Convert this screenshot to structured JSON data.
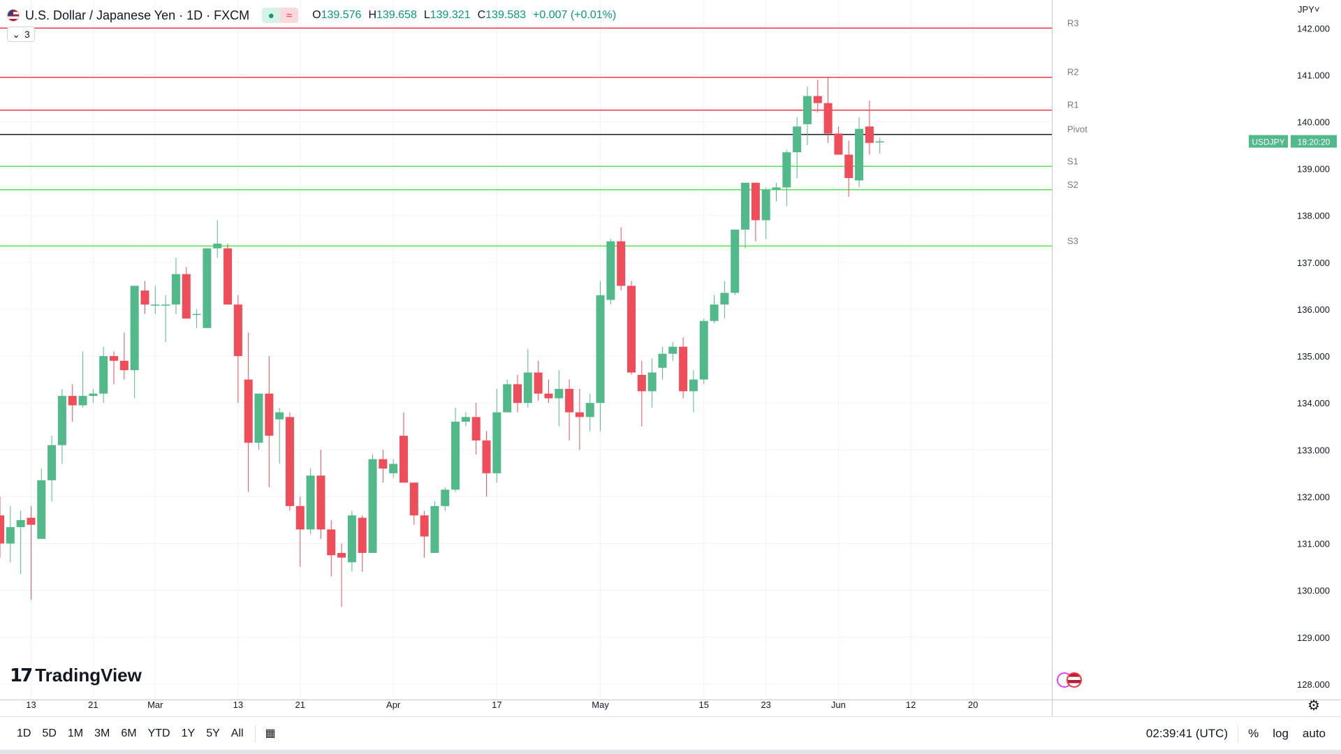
{
  "header": {
    "title": "U.S. Dollar / Japanese Yen · 1D · FXCM",
    "ohlc": {
      "o_label": "O",
      "o": "139.576",
      "h_label": "H",
      "h": "139.658",
      "l_label": "L",
      "l": "139.321",
      "c_label": "C",
      "c": "139.583",
      "change": "+0.007 (+0.01%)"
    },
    "indicator_count": "3"
  },
  "currency_menu": "JPY",
  "brand": "TradingView",
  "bottom_bar": {
    "ranges": [
      "1D",
      "5D",
      "1M",
      "3M",
      "6M",
      "YTD",
      "1Y",
      "5Y",
      "All"
    ],
    "clock": "02:39:41 (UTC)",
    "percent": "%",
    "log": "log",
    "auto": "auto"
  },
  "colors": {
    "up": "#52b98a",
    "down": "#ef4d5a",
    "resistance": "#f23645",
    "support": "#4ce64c",
    "pivot": "#131722"
  },
  "chart_data": {
    "type": "candlestick",
    "symbol": "USDJPY",
    "last_price_label": "USDJPY",
    "countdown": "18:20:20",
    "ylim": [
      127.7,
      142.6
    ],
    "y_ticks": [
      128.0,
      129.0,
      130.0,
      131.0,
      132.0,
      133.0,
      134.0,
      135.0,
      136.0,
      137.0,
      138.0,
      139.0,
      140.0,
      141.0,
      142.0
    ],
    "x_ticks": [
      {
        "label": "13",
        "index": 3
      },
      {
        "label": "21",
        "index": 9
      },
      {
        "label": "Mar",
        "index": 15
      },
      {
        "label": "13",
        "index": 23
      },
      {
        "label": "21",
        "index": 29
      },
      {
        "label": "Apr",
        "index": 38
      },
      {
        "label": "17",
        "index": 48
      },
      {
        "label": "May",
        "index": 58
      },
      {
        "label": "15",
        "index": 68
      },
      {
        "label": "23",
        "index": 74
      },
      {
        "label": "Jun",
        "index": 81
      },
      {
        "label": "12",
        "index": 88
      },
      {
        "label": "20",
        "index": 94
      }
    ],
    "levels": [
      {
        "name": "R3",
        "value": 142.0
      },
      {
        "name": "R2",
        "value": 140.95
      },
      {
        "name": "R1",
        "value": 140.25
      },
      {
        "name": "Pivot",
        "value": 139.73
      },
      {
        "name": "S1",
        "value": 139.05
      },
      {
        "name": "S2",
        "value": 138.55
      },
      {
        "name": "S3",
        "value": 137.35
      }
    ],
    "candles": [
      {
        "o": 131.6,
        "h": 132.0,
        "l": 130.7,
        "c": 131.0
      },
      {
        "o": 131.0,
        "h": 131.8,
        "l": 130.6,
        "c": 131.35
      },
      {
        "o": 131.35,
        "h": 131.7,
        "l": 130.35,
        "c": 131.5
      },
      {
        "o": 131.55,
        "h": 131.8,
        "l": 129.8,
        "c": 131.4
      },
      {
        "o": 131.1,
        "h": 132.6,
        "l": 131.1,
        "c": 132.35
      },
      {
        "o": 132.35,
        "h": 133.3,
        "l": 131.9,
        "c": 133.1
      },
      {
        "o": 133.1,
        "h": 134.3,
        "l": 132.7,
        "c": 134.15
      },
      {
        "o": 134.15,
        "h": 134.4,
        "l": 133.6,
        "c": 133.95
      },
      {
        "o": 133.95,
        "h": 135.1,
        "l": 133.9,
        "c": 134.15
      },
      {
        "o": 134.15,
        "h": 134.3,
        "l": 134.0,
        "c": 134.2
      },
      {
        "o": 134.2,
        "h": 135.2,
        "l": 134.0,
        "c": 135.0
      },
      {
        "o": 135.0,
        "h": 135.1,
        "l": 134.4,
        "c": 134.9
      },
      {
        "o": 134.9,
        "h": 135.5,
        "l": 134.5,
        "c": 134.7
      },
      {
        "o": 134.7,
        "h": 136.5,
        "l": 134.1,
        "c": 136.5
      },
      {
        "o": 136.4,
        "h": 136.6,
        "l": 135.9,
        "c": 136.1
      },
      {
        "o": 136.1,
        "h": 136.5,
        "l": 135.9,
        "c": 136.1
      },
      {
        "o": 136.1,
        "h": 136.3,
        "l": 135.3,
        "c": 136.1
      },
      {
        "o": 136.1,
        "h": 137.1,
        "l": 135.9,
        "c": 136.75
      },
      {
        "o": 136.75,
        "h": 136.9,
        "l": 135.8,
        "c": 135.8
      },
      {
        "o": 135.9,
        "h": 136.0,
        "l": 135.6,
        "c": 135.9
      },
      {
        "o": 135.6,
        "h": 137.3,
        "l": 135.6,
        "c": 137.3
      },
      {
        "o": 137.3,
        "h": 137.9,
        "l": 137.1,
        "c": 137.4
      },
      {
        "o": 137.3,
        "h": 137.4,
        "l": 136.1,
        "c": 136.1
      },
      {
        "o": 136.1,
        "h": 136.3,
        "l": 134.0,
        "c": 135.0
      },
      {
        "o": 134.5,
        "h": 135.5,
        "l": 132.1,
        "c": 133.15
      },
      {
        "o": 133.15,
        "h": 134.2,
        "l": 133.0,
        "c": 134.2
      },
      {
        "o": 134.2,
        "h": 135.0,
        "l": 132.2,
        "c": 133.3
      },
      {
        "o": 133.65,
        "h": 133.9,
        "l": 132.7,
        "c": 133.8
      },
      {
        "o": 133.7,
        "h": 133.8,
        "l": 131.7,
        "c": 131.8
      },
      {
        "o": 131.8,
        "h": 132.0,
        "l": 130.5,
        "c": 131.3
      },
      {
        "o": 131.3,
        "h": 132.6,
        "l": 131.2,
        "c": 132.45
      },
      {
        "o": 132.45,
        "h": 133.0,
        "l": 131.1,
        "c": 131.3
      },
      {
        "o": 131.3,
        "h": 131.5,
        "l": 130.3,
        "c": 130.75
      },
      {
        "o": 130.8,
        "h": 131.0,
        "l": 129.65,
        "c": 130.7
      },
      {
        "o": 130.6,
        "h": 131.7,
        "l": 130.4,
        "c": 131.6
      },
      {
        "o": 131.55,
        "h": 131.6,
        "l": 130.4,
        "c": 130.8
      },
      {
        "o": 130.8,
        "h": 132.9,
        "l": 130.8,
        "c": 132.8
      },
      {
        "o": 132.8,
        "h": 133.0,
        "l": 132.3,
        "c": 132.6
      },
      {
        "o": 132.5,
        "h": 132.8,
        "l": 132.4,
        "c": 132.7
      },
      {
        "o": 133.3,
        "h": 133.8,
        "l": 132.3,
        "c": 132.3
      },
      {
        "o": 132.3,
        "h": 132.3,
        "l": 131.4,
        "c": 131.6
      },
      {
        "o": 131.6,
        "h": 131.7,
        "l": 130.7,
        "c": 131.15
      },
      {
        "o": 130.8,
        "h": 131.9,
        "l": 130.8,
        "c": 131.8
      },
      {
        "o": 131.8,
        "h": 132.2,
        "l": 131.7,
        "c": 132.15
      },
      {
        "o": 132.15,
        "h": 133.9,
        "l": 132.1,
        "c": 133.6
      },
      {
        "o": 133.6,
        "h": 133.8,
        "l": 133.5,
        "c": 133.7
      },
      {
        "o": 133.7,
        "h": 134.0,
        "l": 132.9,
        "c": 133.2
      },
      {
        "o": 133.2,
        "h": 133.4,
        "l": 132.0,
        "c": 132.5
      },
      {
        "o": 132.5,
        "h": 134.3,
        "l": 132.3,
        "c": 133.8
      },
      {
        "o": 133.8,
        "h": 134.5,
        "l": 133.8,
        "c": 134.4
      },
      {
        "o": 134.4,
        "h": 134.6,
        "l": 133.8,
        "c": 134.0
      },
      {
        "o": 134.0,
        "h": 135.15,
        "l": 133.9,
        "c": 134.65
      },
      {
        "o": 134.65,
        "h": 134.9,
        "l": 134.05,
        "c": 134.2
      },
      {
        "o": 134.2,
        "h": 134.5,
        "l": 134.0,
        "c": 134.1
      },
      {
        "o": 134.1,
        "h": 134.7,
        "l": 133.5,
        "c": 134.3
      },
      {
        "o": 134.3,
        "h": 134.5,
        "l": 133.2,
        "c": 133.8
      },
      {
        "o": 133.8,
        "h": 134.3,
        "l": 133.0,
        "c": 133.7
      },
      {
        "o": 133.7,
        "h": 134.2,
        "l": 133.4,
        "c": 134.0
      },
      {
        "o": 134.0,
        "h": 136.6,
        "l": 133.4,
        "c": 136.3
      },
      {
        "o": 136.2,
        "h": 137.5,
        "l": 136.1,
        "c": 137.45
      },
      {
        "o": 137.45,
        "h": 137.75,
        "l": 136.4,
        "c": 136.5
      },
      {
        "o": 136.5,
        "h": 136.6,
        "l": 134.6,
        "c": 134.65
      },
      {
        "o": 134.6,
        "h": 134.9,
        "l": 133.5,
        "c": 134.25
      },
      {
        "o": 134.25,
        "h": 134.95,
        "l": 133.9,
        "c": 134.65
      },
      {
        "o": 134.75,
        "h": 135.2,
        "l": 134.5,
        "c": 135.05
      },
      {
        "o": 135.05,
        "h": 135.3,
        "l": 134.9,
        "c": 135.2
      },
      {
        "o": 135.2,
        "h": 135.4,
        "l": 134.1,
        "c": 134.25
      },
      {
        "o": 134.25,
        "h": 134.7,
        "l": 133.8,
        "c": 134.5
      },
      {
        "o": 134.5,
        "h": 135.8,
        "l": 134.4,
        "c": 135.75
      },
      {
        "o": 135.75,
        "h": 136.3,
        "l": 135.7,
        "c": 136.1
      },
      {
        "o": 136.1,
        "h": 136.6,
        "l": 135.8,
        "c": 136.35
      },
      {
        "o": 136.35,
        "h": 137.7,
        "l": 136.3,
        "c": 137.7
      },
      {
        "o": 137.7,
        "h": 138.7,
        "l": 137.3,
        "c": 138.7
      },
      {
        "o": 138.7,
        "h": 138.7,
        "l": 137.45,
        "c": 137.9
      },
      {
        "o": 137.9,
        "h": 138.6,
        "l": 137.5,
        "c": 138.55
      },
      {
        "o": 138.55,
        "h": 138.7,
        "l": 138.3,
        "c": 138.6
      },
      {
        "o": 138.6,
        "h": 139.4,
        "l": 138.2,
        "c": 139.35
      },
      {
        "o": 139.35,
        "h": 140.1,
        "l": 138.8,
        "c": 139.9
      },
      {
        "o": 139.95,
        "h": 140.75,
        "l": 139.5,
        "c": 140.55
      },
      {
        "o": 140.55,
        "h": 140.9,
        "l": 140.2,
        "c": 140.4
      },
      {
        "o": 140.4,
        "h": 140.95,
        "l": 139.55,
        "c": 139.75
      },
      {
        "o": 139.75,
        "h": 139.9,
        "l": 139.3,
        "c": 139.3
      },
      {
        "o": 139.3,
        "h": 139.6,
        "l": 138.4,
        "c": 138.8
      },
      {
        "o": 138.75,
        "h": 140.1,
        "l": 138.6,
        "c": 139.85
      },
      {
        "o": 139.9,
        "h": 140.45,
        "l": 139.3,
        "c": 139.55
      },
      {
        "o": 139.576,
        "h": 139.658,
        "l": 139.321,
        "c": 139.583
      }
    ]
  }
}
